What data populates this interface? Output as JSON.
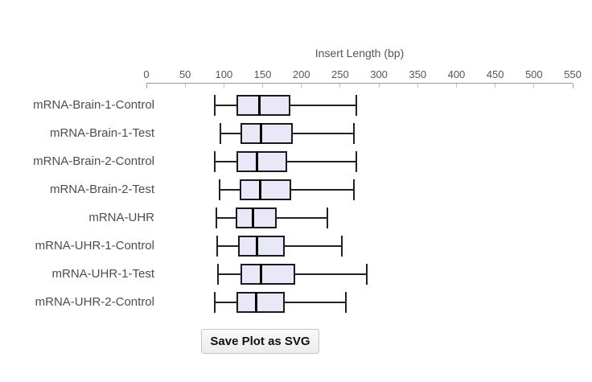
{
  "page": {
    "background": "#ffffff"
  },
  "button": {
    "label": "Save Plot as SVG"
  },
  "colors": {
    "box_fill": "#e8e8f8",
    "box_border": "#1a1a1a",
    "median": "#000000",
    "whisker": "#222222",
    "axis_line": "#999999",
    "tick": "#c0c0c0",
    "tick_end": "#a0a0a0",
    "tick_label": "#555555",
    "category_label": "#4d4d4d",
    "button_border": "#c6c6c6"
  },
  "chart_data": {
    "type": "boxplot",
    "orientation": "horizontal",
    "title": "",
    "xlabel": "Insert Length (bp)",
    "ylabel": "",
    "xlim": [
      0,
      550
    ],
    "xticks": [
      0,
      50,
      100,
      150,
      200,
      250,
      300,
      350,
      400,
      450,
      500,
      550
    ],
    "axis_position": "top",
    "grid": false,
    "legend": false,
    "categories": [
      "mRNA-Brain-1-Control",
      "mRNA-Brain-1-Test",
      "mRNA-Brain-2-Control",
      "mRNA-Brain-2-Test",
      "mRNA-UHR",
      "mRNA-UHR-1-Control",
      "mRNA-UHR-1-Test",
      "mRNA-UHR-2-Control"
    ],
    "boxes": [
      {
        "label": "mRNA-Brain-1-Control",
        "whisker_low": 88,
        "q1": 116,
        "median": 146,
        "q3": 186,
        "whisker_high": 271
      },
      {
        "label": "mRNA-Brain-1-Test",
        "whisker_low": 95,
        "q1": 121,
        "median": 148,
        "q3": 189,
        "whisker_high": 268
      },
      {
        "label": "mRNA-Brain-2-Control",
        "whisker_low": 88,
        "q1": 116,
        "median": 143,
        "q3": 182,
        "whisker_high": 271
      },
      {
        "label": "mRNA-Brain-2-Test",
        "whisker_low": 94,
        "q1": 120,
        "median": 147,
        "q3": 187,
        "whisker_high": 268
      },
      {
        "label": "mRNA-UHR",
        "whisker_low": 90,
        "q1": 115,
        "median": 137,
        "q3": 168,
        "whisker_high": 234
      },
      {
        "label": "mRNA-UHR-1-Control",
        "whisker_low": 91,
        "q1": 118,
        "median": 143,
        "q3": 179,
        "whisker_high": 252
      },
      {
        "label": "mRNA-UHR-1-Test",
        "whisker_low": 92,
        "q1": 121,
        "median": 148,
        "q3": 192,
        "whisker_high": 284
      },
      {
        "label": "mRNA-UHR-2-Control",
        "whisker_low": 88,
        "q1": 116,
        "median": 142,
        "q3": 178,
        "whisker_high": 257
      }
    ]
  }
}
